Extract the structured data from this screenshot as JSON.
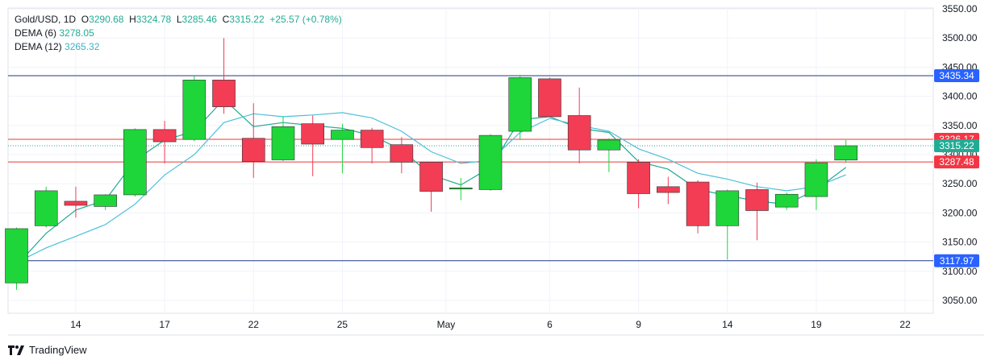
{
  "legend": {
    "symbol": "Gold/USD",
    "interval": "1D",
    "o_label": "O",
    "o_value": "3290.68",
    "h_label": "H",
    "h_value": "3324.78",
    "l_label": "L",
    "l_value": "3285.46",
    "c_label": "C",
    "c_value": "3315.22",
    "change": "+25.57 (+0.78%)",
    "dema6_label": "DEMA (6)",
    "dema6_value": "3278.05",
    "dema12_label": "DEMA (12)",
    "dema12_value": "3265.32"
  },
  "brand": {
    "name": "TradingView"
  },
  "colors": {
    "up": "#1ed63a",
    "down": "#f23d55",
    "wick": "#4a4a4a",
    "dema6": "#22ab94",
    "dema12": "#4dc0d8",
    "support_resistance": "#1e3a8a",
    "price_line": "#e53935",
    "axis_badge_blue": "#2962ff",
    "axis_badge_red": "#f23645",
    "axis_badge_green": "#22ab94"
  },
  "chart_data": {
    "type": "candlestick",
    "x_tick_labels": [
      "14",
      "17",
      "22",
      "25",
      "May",
      "6",
      "9",
      "14",
      "19",
      "22"
    ],
    "y_ticks": [
      3050,
      3100,
      3150,
      3200,
      3250,
      3300,
      3350,
      3400,
      3450,
      3500,
      3550
    ],
    "y_tick_labels": [
      "3050.00",
      "3100.00",
      "3150.00",
      "3200.00",
      "3250.00",
      "3300.00",
      "3350.00",
      "3400.00",
      "3450.00",
      "3500.00",
      "3550.00"
    ],
    "ylim": [
      3020,
      3560
    ],
    "horizontal_levels": [
      {
        "value": 3435.34,
        "label": "3435.34",
        "style": "support_resistance"
      },
      {
        "value": 3117.97,
        "label": "3117.97",
        "style": "support_resistance"
      },
      {
        "value": 3326.17,
        "label": "3326.17",
        "style": "price_line"
      },
      {
        "value": 3287.48,
        "label": "3287.48",
        "style": "price_line"
      }
    ],
    "current_price": {
      "value": 3315.22,
      "label": "3315.22"
    },
    "candles": [
      {
        "o": 3080,
        "h": 3175,
        "l": 3068,
        "c": 3173
      },
      {
        "o": 3178,
        "h": 3245,
        "l": 3175,
        "c": 3238
      },
      {
        "o": 3220,
        "h": 3245,
        "l": 3192,
        "c": 3213
      },
      {
        "o": 3211,
        "h": 3232,
        "l": 3205,
        "c": 3231
      },
      {
        "o": 3231,
        "h": 3345,
        "l": 3228,
        "c": 3343
      },
      {
        "o": 3343,
        "h": 3358,
        "l": 3285,
        "c": 3322
      },
      {
        "o": 3326,
        "h": 3435,
        "l": 3323,
        "c": 3428
      },
      {
        "o": 3428,
        "h": 3500,
        "l": 3370,
        "c": 3382
      },
      {
        "o": 3328,
        "h": 3388,
        "l": 3260,
        "c": 3288
      },
      {
        "o": 3291,
        "h": 3366,
        "l": 3289,
        "c": 3348
      },
      {
        "o": 3353,
        "h": 3367,
        "l": 3263,
        "c": 3318
      },
      {
        "o": 3326,
        "h": 3353,
        "l": 3268,
        "c": 3342
      },
      {
        "o": 3342,
        "h": 3346,
        "l": 3285,
        "c": 3312
      },
      {
        "o": 3317,
        "h": 3330,
        "l": 3268,
        "c": 3287
      },
      {
        "o": 3287,
        "h": 3288,
        "l": 3202,
        "c": 3237
      },
      {
        "o": 3241,
        "h": 3260,
        "l": 3222,
        "c": 3243
      },
      {
        "o": 3240,
        "h": 3335,
        "l": 3238,
        "c": 3333
      },
      {
        "o": 3340,
        "h": 3437,
        "l": 3325,
        "c": 3432
      },
      {
        "o": 3430,
        "h": 3432,
        "l": 3365,
        "c": 3365
      },
      {
        "o": 3367,
        "h": 3415,
        "l": 3285,
        "c": 3308
      },
      {
        "o": 3308,
        "h": 3328,
        "l": 3270,
        "c": 3325
      },
      {
        "o": 3287,
        "h": 3292,
        "l": 3208,
        "c": 3233
      },
      {
        "o": 3245,
        "h": 3262,
        "l": 3215,
        "c": 3235
      },
      {
        "o": 3253,
        "h": 3256,
        "l": 3165,
        "c": 3178
      },
      {
        "o": 3178,
        "h": 3240,
        "l": 3120,
        "c": 3238
      },
      {
        "o": 3240,
        "h": 3252,
        "l": 3153,
        "c": 3204
      },
      {
        "o": 3210,
        "h": 3235,
        "l": 3205,
        "c": 3232
      },
      {
        "o": 3228,
        "h": 3292,
        "l": 3205,
        "c": 3286
      },
      {
        "o": 3290.68,
        "h": 3324.78,
        "l": 3285.46,
        "c": 3315.22
      }
    ],
    "series": [
      {
        "name": "DEMA (6)",
        "values": [
          3110,
          3165,
          3205,
          3222,
          3290,
          3325,
          3340,
          3395,
          3348,
          3355,
          3350,
          3345,
          3333,
          3308,
          3265,
          3248,
          3278,
          3360,
          3365,
          3345,
          3338,
          3288,
          3275,
          3240,
          3230,
          3220,
          3215,
          3240,
          3278.05
        ]
      },
      {
        "name": "DEMA (12)",
        "values": [
          3115,
          3140,
          3160,
          3180,
          3215,
          3265,
          3300,
          3355,
          3370,
          3365,
          3368,
          3372,
          3363,
          3340,
          3305,
          3285,
          3290,
          3338,
          3362,
          3350,
          3340,
          3310,
          3292,
          3268,
          3258,
          3245,
          3238,
          3245,
          3265.32
        ]
      }
    ]
  }
}
